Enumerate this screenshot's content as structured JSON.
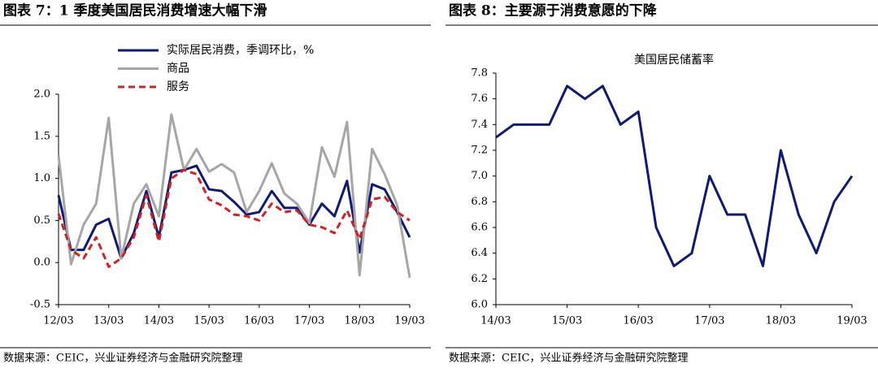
{
  "chart_data": [
    {
      "type": "line",
      "title": "图表 7：1 季度美国居民消费增速大幅下滑",
      "source": "数据来源：CEIC，兴业证券经济与金融研究院整理",
      "categories": [
        "12/03",
        null,
        null,
        null,
        "13/03",
        null,
        null,
        null,
        "14/03",
        null,
        null,
        null,
        "15/03",
        null,
        null,
        null,
        "16/03",
        null,
        null,
        null,
        "17/03",
        null,
        null,
        null,
        "18/03",
        null,
        null,
        null,
        "19/03"
      ],
      "series": [
        {
          "name": "实际居民消费，季调环比，%",
          "color": "#0d1a78",
          "values": [
            0.8,
            0.15,
            0.15,
            0.45,
            0.52,
            0.05,
            0.35,
            0.85,
            0.3,
            1.07,
            1.1,
            1.15,
            0.87,
            0.85,
            0.72,
            0.57,
            0.6,
            0.85,
            0.65,
            0.65,
            0.45,
            0.7,
            0.55,
            0.97,
            0.12,
            0.93,
            0.87,
            0.6,
            0.3
          ]
        },
        {
          "name": "商品",
          "color": "#a6a6a6",
          "values": [
            1.27,
            -0.02,
            0.45,
            0.7,
            1.72,
            0.05,
            0.7,
            0.93,
            0.55,
            1.76,
            1.1,
            1.35,
            1.08,
            1.17,
            1.07,
            0.6,
            0.85,
            1.18,
            0.82,
            0.7,
            0.47,
            1.37,
            1.02,
            1.67,
            -0.15,
            1.35,
            1.05,
            0.68,
            -0.18
          ]
        },
        {
          "name": "服务",
          "color": "#d42020",
          "dashed": true,
          "values": [
            0.58,
            0.15,
            0.05,
            0.3,
            -0.05,
            0.05,
            0.3,
            0.8,
            0.25,
            1.0,
            1.1,
            1.05,
            0.75,
            0.68,
            0.57,
            0.55,
            0.5,
            0.7,
            0.6,
            0.62,
            0.45,
            0.42,
            0.35,
            0.62,
            0.28,
            0.75,
            0.78,
            0.6,
            0.5
          ]
        }
      ],
      "ylim": [
        -0.5,
        2.0
      ],
      "yticks": [
        -0.5,
        {
          "value": 0,
          "label": "0.0"
        },
        0.5,
        {
          "value": 1,
          "label": "1.0"
        },
        1.5,
        {
          "value": 2,
          "label": "2.0"
        }
      ]
    },
    {
      "type": "line",
      "title": "图表 8：主要源于消费意愿的下降",
      "source": "数据来源：CEIC，兴业证券经济与金融研究院整理",
      "categories": [
        "14/03",
        null,
        null,
        null,
        "15/03",
        null,
        null,
        null,
        "16/03",
        null,
        null,
        null,
        "17/03",
        null,
        null,
        null,
        "18/03",
        null,
        null,
        null,
        "19/03"
      ],
      "series": [
        {
          "name": "美国居民储蓄率",
          "color": "#0d1a78",
          "values": [
            7.3,
            7.4,
            7.4,
            7.4,
            7.7,
            7.6,
            7.7,
            7.4,
            7.5,
            6.6,
            6.3,
            6.4,
            7.0,
            6.7,
            6.7,
            6.3,
            7.2,
            6.7,
            6.4,
            6.8,
            7.0
          ]
        }
      ],
      "ylim": [
        6.0,
        7.8
      ],
      "yticks": [
        {
          "value": 6,
          "label": "6.0"
        },
        6.2,
        6.4,
        6.6,
        6.8,
        {
          "value": 7,
          "label": "7.0"
        },
        7.2,
        7.4,
        7.6,
        7.8
      ]
    }
  ]
}
